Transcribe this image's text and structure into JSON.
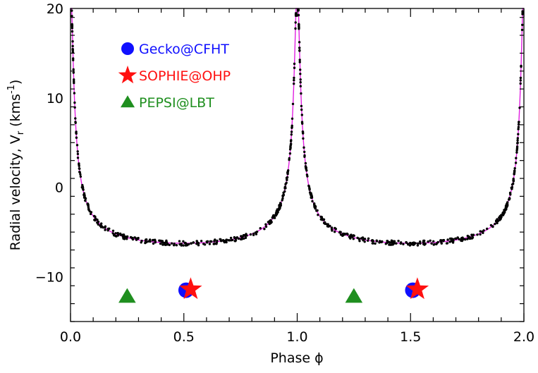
{
  "chart_data": {
    "type": "scatter",
    "title": "",
    "xlabel": "Phase ϕ",
    "ylabel_main": "Radial velocity, V",
    "ylabel_sub": "r",
    "ylabel_unit_pre": "(kms",
    "ylabel_unit_sup": "-1",
    "ylabel_unit_post": ")",
    "xlim": [
      0.0,
      2.0
    ],
    "ylim": [
      -15,
      20
    ],
    "x_ticks": [
      {
        "value": 0.0,
        "label": "0.0"
      },
      {
        "value": 0.5,
        "label": "0.5"
      },
      {
        "value": 1.0,
        "label": "1.0"
      },
      {
        "value": 1.5,
        "label": "1.5"
      },
      {
        "value": 2.0,
        "label": "2.0"
      }
    ],
    "y_ticks": [
      {
        "value": -10,
        "label": "−10"
      },
      {
        "value": 0,
        "label": "0"
      },
      {
        "value": 10,
        "label": "10"
      },
      {
        "value": 20,
        "label": "20"
      }
    ],
    "grid": false,
    "legend_position": "top-left",
    "model_curve": {
      "color": "#e020e0",
      "eccentricity": 0.83,
      "semi_amplitude": 14.4,
      "gamma": -3.8,
      "periastron_phase": 1.0
    },
    "observations": {
      "color": "#000000",
      "phase_range": [
        0.0,
        1.0
      ],
      "scatter_kms": 0.25
    },
    "series": [
      {
        "name": "Gecko@CFHT",
        "color": "#1010ff",
        "marker": "circle",
        "points": [
          [
            0.51,
            -11.5
          ],
          [
            1.51,
            -11.5
          ]
        ]
      },
      {
        "name": "SOPHIE@OHP",
        "color": "#ff1010",
        "marker": "star",
        "points": [
          [
            0.53,
            -11.4
          ],
          [
            1.53,
            -11.4
          ]
        ]
      },
      {
        "name": "PEPSI@LBT",
        "color": "#1f8f1f",
        "marker": "triangle",
        "points": [
          [
            0.25,
            -12.2
          ],
          [
            1.25,
            -12.2
          ]
        ]
      }
    ]
  }
}
